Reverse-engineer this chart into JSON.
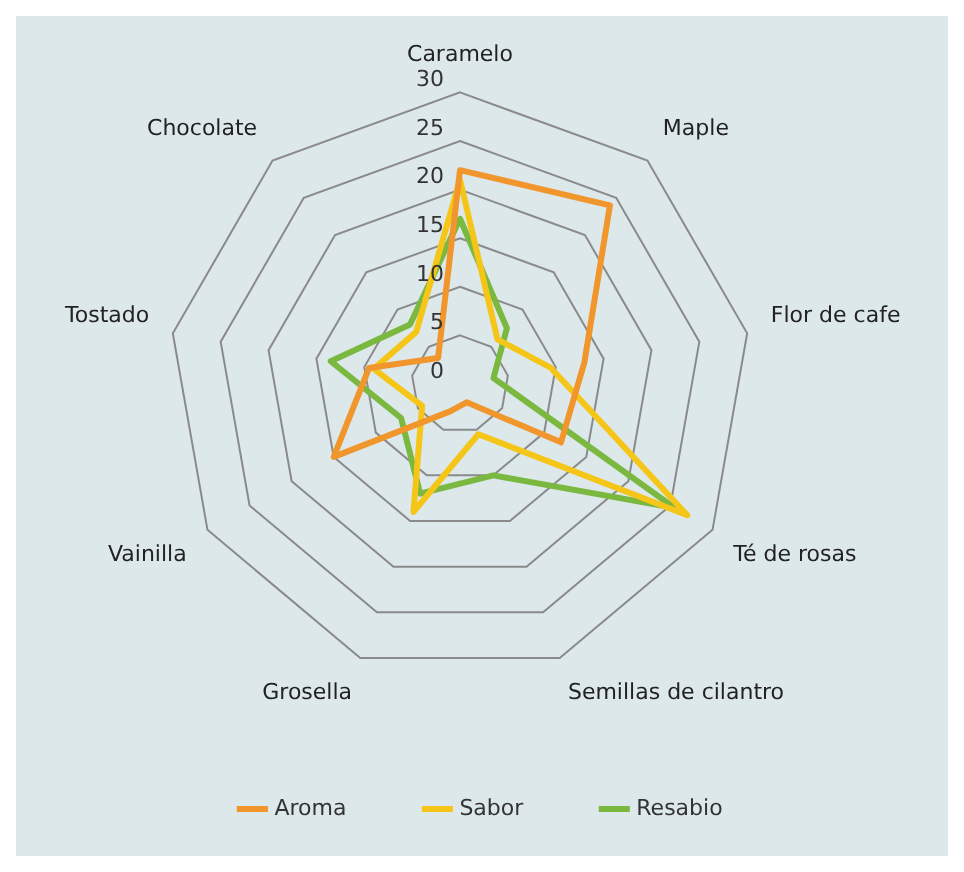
{
  "chart_data": {
    "type": "radar",
    "categories": [
      "Caramelo",
      "Maple",
      "Flor de cafe",
      "Té de rosas",
      "Semillas de cilantro",
      "Grosella",
      "Vainilla",
      "Tostado",
      "Chocolate"
    ],
    "series": [
      {
        "name": "Aroma",
        "color": "#f0962c",
        "values": [
          22,
          24,
          13,
          12,
          2,
          3,
          15,
          9.5,
          3.5
        ]
      },
      {
        "name": "Sabor",
        "color": "#f5c518",
        "values": [
          21,
          6,
          9.5,
          27,
          5.5,
          14,
          4.5,
          9,
          7
        ]
      },
      {
        "name": "Resabio",
        "color": "#7ab840",
        "values": [
          17,
          7.5,
          3.5,
          25.5,
          10,
          12,
          7,
          13.5,
          8
        ]
      }
    ],
    "ylim": [
      0,
      30
    ],
    "yticks": [
      0,
      5,
      10,
      15,
      20,
      25,
      30
    ],
    "grid": true,
    "legend": "bottom",
    "marker": "none"
  }
}
